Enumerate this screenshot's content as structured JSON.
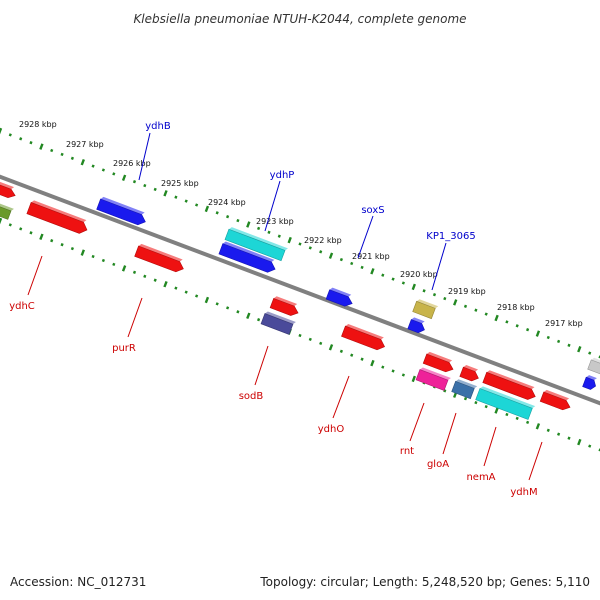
{
  "title": "Klebsiella pneumoniae NTUH-K2044, complete genome",
  "footer": {
    "accession": "Accession: NC_012731",
    "summary": "Topology: circular; Length: 5,248,520 bp; Genes: 5,110"
  },
  "kbp_ticks": [
    "2928 kbp",
    "2927 kbp",
    "2926 kbp",
    "2925 kbp",
    "2924 kbp",
    "2923 kbp",
    "2922 kbp",
    "2921 kbp",
    "2920 kbp",
    "2919 kbp",
    "2918 kbp",
    "2917 kbp"
  ],
  "upper_labels": [
    "ydhB",
    "ydhP",
    "soxS",
    "KP1_3065"
  ],
  "lower_labels": [
    "ydhC",
    "purR",
    "sodB",
    "ydhO",
    "rnt",
    "gloA",
    "nemA",
    "ydhM"
  ],
  "colors": {
    "backbone": "#808080",
    "upper_track": "#228822",
    "lower_track": "#228822",
    "upper_label": "#0000cc",
    "lower_label": "#cc0000",
    "red": "#ee1111",
    "blue": "#1a1aee",
    "cyan": "#1dd6d6",
    "olive": "#c8b44a",
    "navy": "#4a4a9a",
    "magenta": "#ee2299",
    "steel": "#3a70a8",
    "green": "#6a9a2a",
    "gray": "#c8c8c8"
  }
}
